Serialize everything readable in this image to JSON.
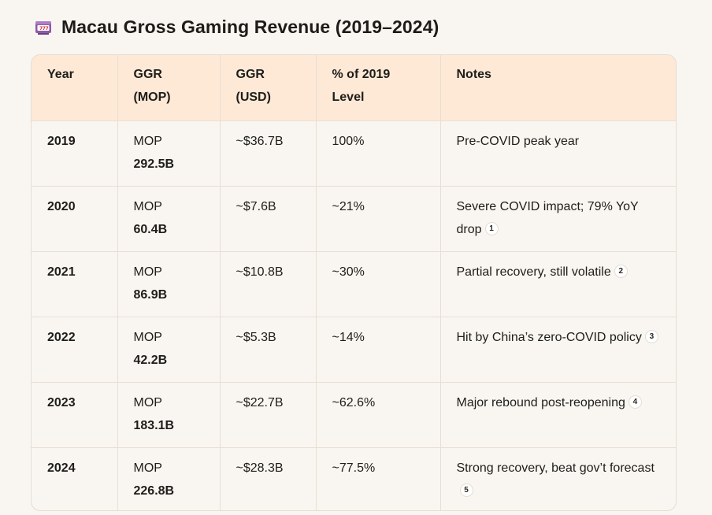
{
  "title": "Macau Gross Gaming Revenue (2019–2024)",
  "title_icon": "slot-machine-icon",
  "headers": {
    "year": "Year",
    "ggr_mop_l1": "GGR",
    "ggr_mop_l2": "(MOP)",
    "ggr_usd_l1": "GGR",
    "ggr_usd_l2": "(USD)",
    "pct_l1": "% of 2019",
    "pct_l2": "Level",
    "notes": "Notes"
  },
  "rows": [
    {
      "year": "2019",
      "mop_prefix": "MOP",
      "mop_amount": "292.5B",
      "usd": "~$36.7B",
      "pct": "100%",
      "note": "Pre-COVID peak year",
      "cite": ""
    },
    {
      "year": "2020",
      "mop_prefix": "MOP",
      "mop_amount": "60.4B",
      "usd": "~$7.6B",
      "pct": "~21%",
      "note": "Severe COVID impact; 79% YoY drop",
      "cite": "1"
    },
    {
      "year": "2021",
      "mop_prefix": "MOP",
      "mop_amount": "86.9B",
      "usd": "~$10.8B",
      "pct": "~30%",
      "note": "Partial recovery, still volatile",
      "cite": "2"
    },
    {
      "year": "2022",
      "mop_prefix": "MOP",
      "mop_amount": "42.2B",
      "usd": "~$5.3B",
      "pct": "~14%",
      "note": "Hit by China’s zero-COVID policy",
      "cite": "3"
    },
    {
      "year": "2023",
      "mop_prefix": "MOP",
      "mop_amount": "183.1B",
      "usd": "~$22.7B",
      "pct": "~62.6%",
      "note": "Major rebound post-reopening",
      "cite": "4"
    },
    {
      "year": "2024",
      "mop_prefix": "MOP",
      "mop_amount": "226.8B",
      "usd": "~$28.3B",
      "pct": "~77.5%",
      "note": "Strong recovery, beat gov’t forecast",
      "cite": "5"
    }
  ]
}
